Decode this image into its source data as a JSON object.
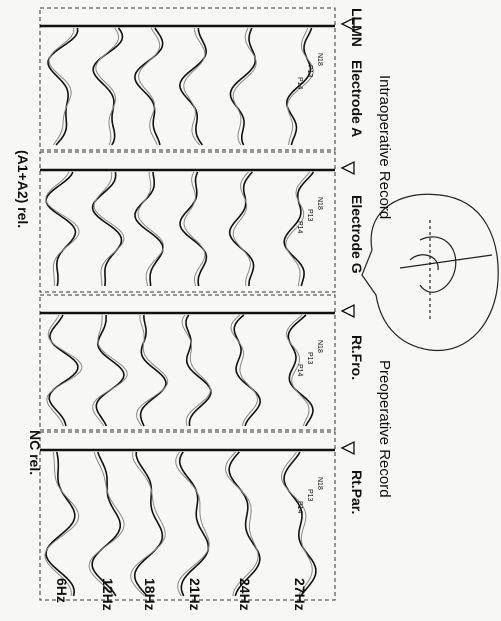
{
  "corner_label": "LLMN",
  "groups": [
    "Intraoperative Record",
    "Preoperative Record"
  ],
  "panels": [
    {
      "label": "Electrode A",
      "peaks": [
        "N18",
        "P13",
        "P14"
      ]
    },
    {
      "label": "Electrode G",
      "peaks": [
        "N18",
        "P13",
        "P14"
      ]
    },
    {
      "label": "Rt.Fro.",
      "peaks": [
        "N18",
        "P13",
        "P14"
      ]
    },
    {
      "label": "Rt.Par.",
      "peaks": [
        "N18",
        "P13",
        "P14"
      ]
    }
  ],
  "references": [
    "(A1+A2) rel.",
    "NC rel."
  ],
  "frequencies": [
    "27Hz",
    "24Hz",
    "21Hz",
    "18Hz",
    "12Hz",
    "6Hz"
  ]
}
